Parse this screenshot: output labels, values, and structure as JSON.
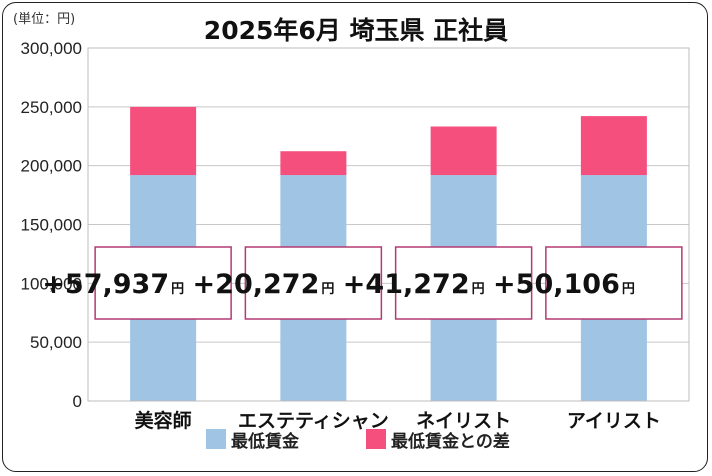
{
  "chart_data": {
    "type": "bar",
    "stacked": true,
    "title": "2025年6月 埼玉県 正社員",
    "unit_label": "(単位：円)",
    "categories": [
      "美容師",
      "エステティシャン",
      "ネイリスト",
      "アイリスト"
    ],
    "series": [
      {
        "name": "最低賃金",
        "values": [
          192000,
          192000,
          192000,
          192000
        ],
        "color": "#9fc4e4"
      },
      {
        "name": "最低賃金との差",
        "values": [
          57937,
          20272,
          41272,
          50106
        ],
        "color": "#f54f7e"
      }
    ],
    "diff_labels": [
      "+57,937",
      "+20,272",
      "+41,272",
      "+50,106"
    ],
    "diff_unit": "円",
    "ylim": [
      0,
      300000
    ],
    "yticks": [
      0,
      50000,
      100000,
      150000,
      200000,
      250000,
      300000
    ],
    "ytick_labels": [
      "0",
      "50,000",
      "100,000",
      "150,000",
      "200,000",
      "250,000",
      "300,000"
    ],
    "grid": true,
    "legend_position": "bottom",
    "label_box_border_color": "#b33a72",
    "plot_border_color": "#bdbdbd"
  }
}
